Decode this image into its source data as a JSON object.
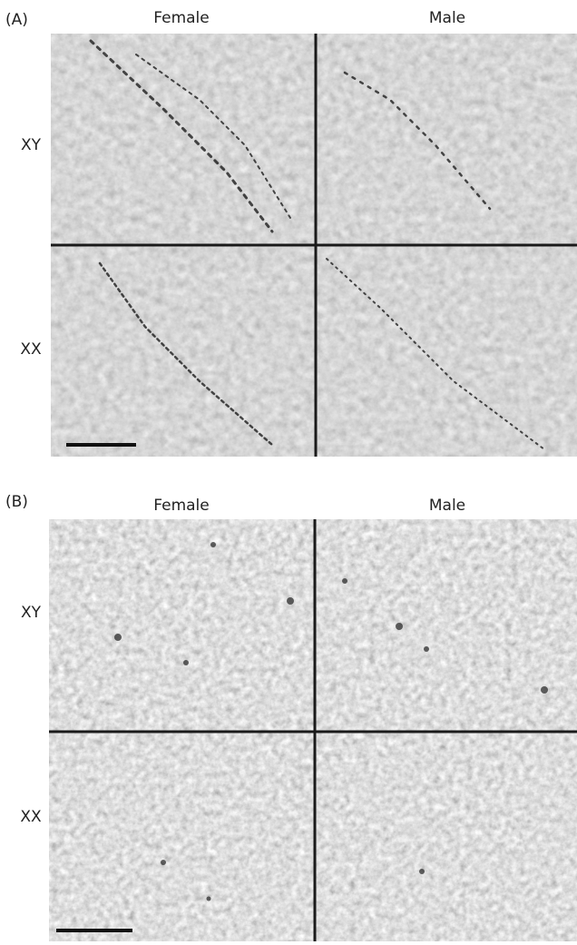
{
  "panels": [
    {
      "label": "(A)",
      "columns": [
        "Female",
        "Male"
      ],
      "rows": [
        "XY",
        "XX"
      ]
    },
    {
      "label": "(B)",
      "columns": [
        "Female",
        "Male"
      ],
      "rows": [
        "XY",
        "XX"
      ]
    }
  ]
}
